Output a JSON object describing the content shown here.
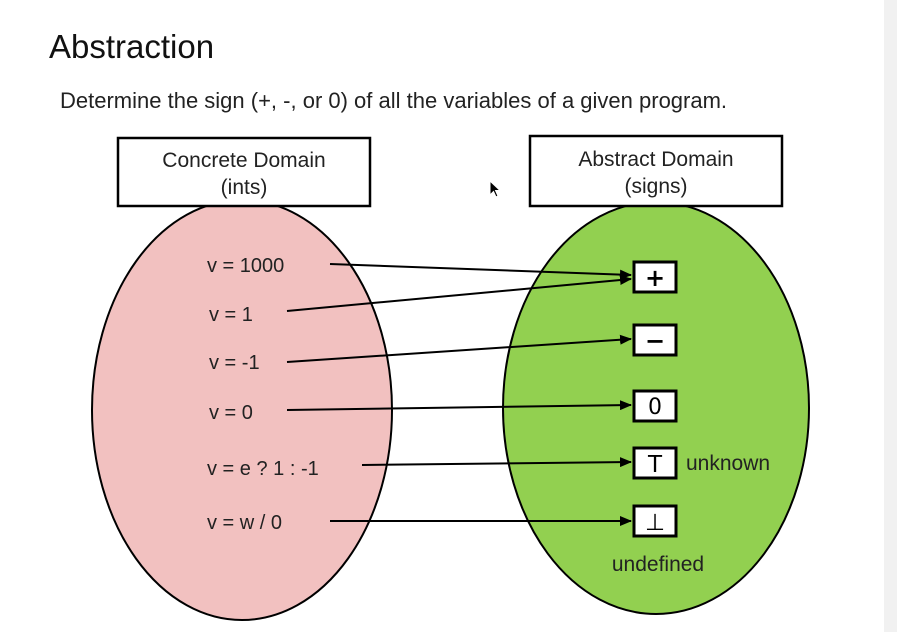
{
  "slide": {
    "title": "Abstraction",
    "subtitle": "Determine the sign (+, -, or 0) of all the variables of a given program."
  },
  "concrete": {
    "title_line1": "Concrete Domain",
    "title_line2": "(ints)",
    "fill": "#f2c1c0",
    "items": [
      "v = 1000",
      "v = 1",
      "v = -1",
      "v = 0",
      "v = e ? 1 : -1",
      "v = w / 0"
    ]
  },
  "abstract": {
    "title_line1": "Abstract Domain",
    "title_line2": "(signs)",
    "fill": "#92d050",
    "signs": [
      "+",
      "−",
      "0",
      "T",
      "⊥"
    ],
    "unknown_label": "unknown",
    "undefined_label": "undefined"
  },
  "mappings": [
    {
      "from": "v = 1000",
      "to": "+"
    },
    {
      "from": "v = 1",
      "to": "+"
    },
    {
      "from": "v = -1",
      "to": "−"
    },
    {
      "from": "v = 0",
      "to": "0"
    },
    {
      "from": "v = e ? 1 : -1",
      "to": "T"
    },
    {
      "from": "v = w / 0",
      "to": "⊥"
    }
  ]
}
